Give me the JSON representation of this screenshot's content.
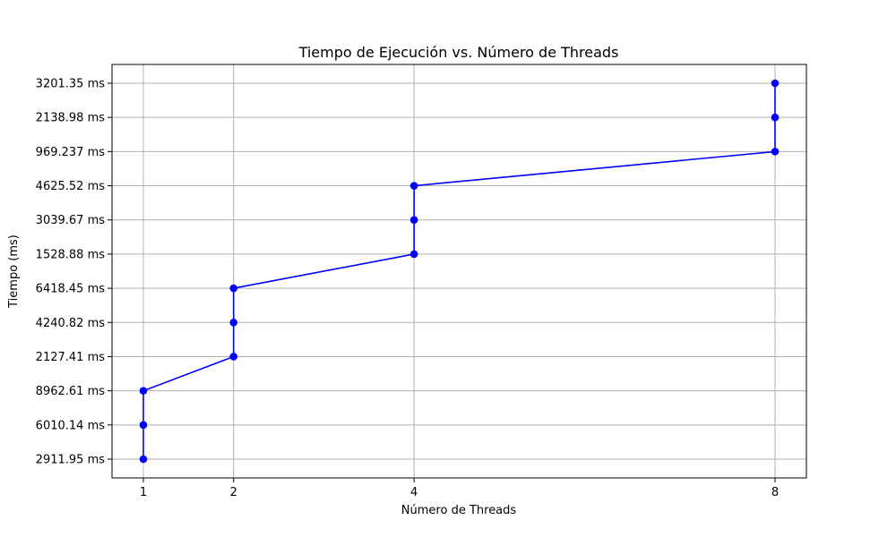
{
  "chart_data": {
    "type": "line",
    "title": "Tiempo de Ejecución vs. Número de Threads",
    "xlabel": "Número de Threads",
    "ylabel": "Tiempo (ms)",
    "x_ticks": [
      1,
      2,
      4,
      8
    ],
    "y_categories": [
      "2911.95 ms",
      "6010.14 ms",
      "8962.61 ms",
      "2127.41 ms",
      "4240.82 ms",
      "6418.45 ms",
      "1528.88 ms",
      "3039.67 ms",
      "4625.52 ms",
      "969.237 ms",
      "2138.98 ms",
      "3201.35 ms"
    ],
    "grid": true,
    "series": [
      {
        "color": "#0000ff",
        "marker": "circle",
        "points": [
          {
            "x": 1,
            "y": "2911.95 ms"
          },
          {
            "x": 1,
            "y": "6010.14 ms"
          },
          {
            "x": 1,
            "y": "8962.61 ms"
          },
          {
            "x": 2,
            "y": "2127.41 ms"
          },
          {
            "x": 2,
            "y": "4240.82 ms"
          },
          {
            "x": 2,
            "y": "6418.45 ms"
          },
          {
            "x": 4,
            "y": "1528.88 ms"
          },
          {
            "x": 4,
            "y": "3039.67 ms"
          },
          {
            "x": 4,
            "y": "4625.52 ms"
          },
          {
            "x": 8,
            "y": "969.237 ms"
          },
          {
            "x": 8,
            "y": "2138.98 ms"
          },
          {
            "x": 8,
            "y": "3201.35 ms"
          }
        ]
      }
    ],
    "colors": {
      "grid": "#b0b0b0",
      "line": "#0000ff",
      "axis": "#000000"
    }
  }
}
